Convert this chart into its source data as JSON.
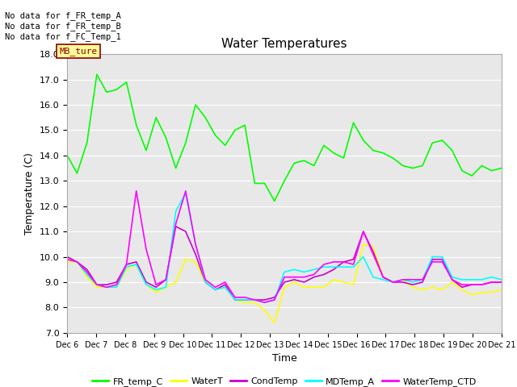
{
  "title": "Water Temperatures",
  "xlabel": "Time",
  "ylabel": "Temperature (C)",
  "ylim": [
    7.0,
    18.0
  ],
  "yticks": [
    7.0,
    8.0,
    9.0,
    10.0,
    11.0,
    12.0,
    13.0,
    14.0,
    15.0,
    16.0,
    17.0,
    18.0
  ],
  "bg_color": "#e8e8e8",
  "fig_color": "#ffffff",
  "no_data_texts": [
    "No data for f_FR_temp_A",
    "No data for f_FR_temp_B",
    "No data for f_FC_Temp_1"
  ],
  "mb_ture_label": "MB_ture",
  "x_tick_labels": [
    "Dec 6",
    "Dec 7",
    "Dec 8",
    "Dec 9",
    "Dec 10",
    "Dec 11",
    "Dec 12",
    "Dec 13",
    "Dec 14",
    "Dec 15",
    "Dec 16",
    "Dec 17",
    "Dec 18",
    "Dec 19",
    "Dec 20",
    "Dec 21"
  ],
  "series": {
    "FR_temp_C": {
      "color": "#00ff00",
      "linewidth": 1.2,
      "values": [
        14.0,
        13.3,
        14.5,
        17.2,
        16.5,
        16.6,
        16.9,
        15.2,
        14.2,
        15.5,
        14.7,
        13.5,
        14.5,
        16.0,
        15.5,
        14.8,
        14.4,
        15.0,
        15.2,
        12.9,
        12.9,
        12.2,
        13.0,
        13.7,
        13.8,
        13.6,
        14.4,
        14.1,
        13.9,
        15.3,
        14.6,
        14.2,
        14.1,
        13.9,
        13.6,
        13.5,
        13.6,
        14.5,
        14.6,
        14.2,
        13.4,
        13.2,
        13.6,
        13.4,
        13.5
      ]
    },
    "WaterT": {
      "color": "#ffff00",
      "linewidth": 1.2,
      "values": [
        9.8,
        9.8,
        9.2,
        8.8,
        8.8,
        8.8,
        9.5,
        9.7,
        8.9,
        8.6,
        8.8,
        9.0,
        9.9,
        9.8,
        9.0,
        8.7,
        8.8,
        8.3,
        8.2,
        8.2,
        7.9,
        7.4,
        8.8,
        9.0,
        8.8,
        8.8,
        8.8,
        9.1,
        9.0,
        8.9,
        10.5,
        10.4,
        9.2,
        9.0,
        9.1,
        8.8,
        8.7,
        8.8,
        8.7,
        9.0,
        8.7,
        8.5,
        8.6,
        8.6,
        8.7
      ]
    },
    "CondTemp": {
      "color": "#cc00cc",
      "linewidth": 1.2,
      "values": [
        10.0,
        9.8,
        9.5,
        8.9,
        8.9,
        9.0,
        9.7,
        9.8,
        9.0,
        8.8,
        9.1,
        11.2,
        11.0,
        10.1,
        9.0,
        8.7,
        8.9,
        8.3,
        8.3,
        8.3,
        8.3,
        8.4,
        9.0,
        9.1,
        9.0,
        9.2,
        9.3,
        9.5,
        9.8,
        9.9,
        11.0,
        10.2,
        9.2,
        9.0,
        9.0,
        8.9,
        9.0,
        9.9,
        9.9,
        9.1,
        8.8,
        8.9,
        8.9,
        9.0,
        9.0
      ]
    },
    "MDTemp_A": {
      "color": "#00ffff",
      "linewidth": 1.2,
      "values": [
        9.9,
        9.8,
        9.3,
        8.9,
        8.8,
        8.8,
        9.6,
        9.7,
        8.9,
        8.7,
        8.8,
        11.8,
        12.5,
        10.5,
        9.0,
        8.7,
        8.8,
        8.3,
        8.3,
        8.3,
        8.2,
        8.3,
        9.4,
        9.5,
        9.4,
        9.5,
        9.6,
        9.6,
        9.6,
        9.6,
        10.0,
        9.2,
        9.1,
        9.0,
        9.1,
        9.0,
        9.1,
        10.0,
        10.0,
        9.2,
        9.1,
        9.1,
        9.1,
        9.2,
        9.1
      ]
    },
    "WaterTemp_CTD": {
      "color": "#ff00ff",
      "linewidth": 1.2,
      "values": [
        9.9,
        9.8,
        9.4,
        8.9,
        8.8,
        8.9,
        9.7,
        12.6,
        10.3,
        8.9,
        9.1,
        11.3,
        12.6,
        10.5,
        9.1,
        8.8,
        9.0,
        8.4,
        8.4,
        8.3,
        8.2,
        8.3,
        9.2,
        9.2,
        9.2,
        9.3,
        9.7,
        9.8,
        9.8,
        9.7,
        11.0,
        10.1,
        9.2,
        9.0,
        9.1,
        9.1,
        9.1,
        9.8,
        9.8,
        9.1,
        8.9,
        8.9,
        8.9,
        9.0,
        9.0
      ]
    }
  }
}
